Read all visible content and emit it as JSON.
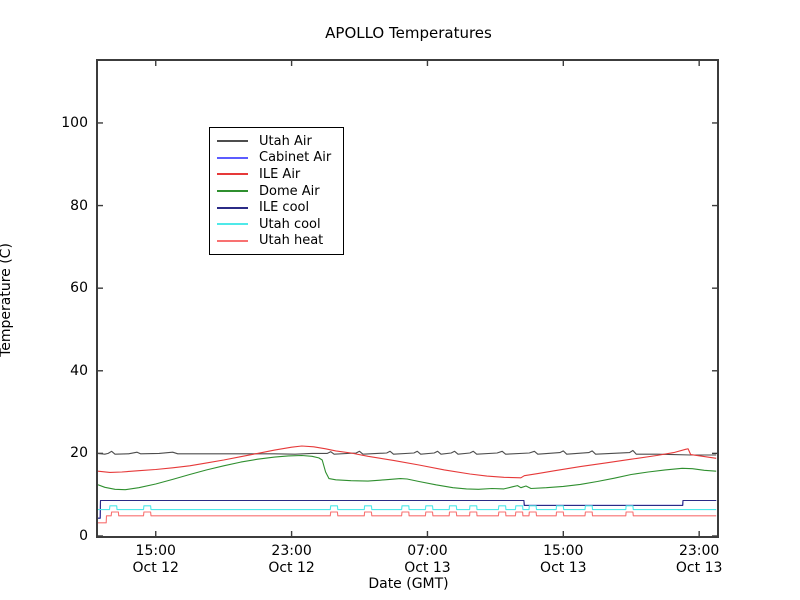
{
  "figure": {
    "title": "APOLLO Temperatures"
  },
  "chart_data": {
    "type": "line",
    "title": "APOLLO Temperatures",
    "xlabel": "Date (GMT)",
    "ylabel": "Temperature (C)",
    "x_units": "hours since Oct 12 00:00 GMT",
    "xlim": [
      11.6,
      48.05
    ],
    "ylim": [
      0,
      115
    ],
    "grid": false,
    "legend_position": "upper-left",
    "yticks": [
      0,
      20,
      40,
      60,
      80,
      100
    ],
    "xticks": [
      {
        "hour": 15,
        "time": "15:00",
        "date": "Oct 12"
      },
      {
        "hour": 23,
        "time": "23:00",
        "date": "Oct 12"
      },
      {
        "hour": 31,
        "time": "07:00",
        "date": "Oct 13"
      },
      {
        "hour": 39,
        "time": "15:00",
        "date": "Oct 13"
      },
      {
        "hour": 47,
        "time": "23:00",
        "date": "Oct 13"
      }
    ],
    "series": [
      {
        "name": "Utah Air",
        "color": "#4d4d4d",
        "points": [
          [
            11.6,
            20.0
          ],
          [
            12.0,
            19.8
          ],
          [
            12.2,
            20.0
          ],
          [
            12.4,
            20.5
          ],
          [
            12.6,
            19.8
          ],
          [
            13.4,
            19.9
          ],
          [
            13.9,
            20.3
          ],
          [
            14.1,
            19.9
          ],
          [
            15.2,
            20.0
          ],
          [
            16.0,
            20.3
          ],
          [
            16.3,
            19.9
          ],
          [
            17.5,
            19.9
          ],
          [
            19.0,
            19.9
          ],
          [
            20.5,
            19.9
          ],
          [
            22.0,
            19.9
          ],
          [
            23.2,
            19.8
          ],
          [
            24.2,
            20.0
          ],
          [
            25.1,
            20.0
          ],
          [
            25.3,
            20.4
          ],
          [
            25.5,
            19.8
          ],
          [
            26.8,
            20.1
          ],
          [
            27.0,
            20.5
          ],
          [
            27.2,
            19.8
          ],
          [
            28.6,
            20.1
          ],
          [
            28.8,
            20.5
          ],
          [
            29.0,
            19.8
          ],
          [
            30.2,
            20.1
          ],
          [
            30.4,
            20.5
          ],
          [
            30.6,
            19.8
          ],
          [
            31.4,
            20.1
          ],
          [
            31.6,
            20.5
          ],
          [
            31.8,
            19.8
          ],
          [
            32.4,
            20.1
          ],
          [
            32.6,
            20.5
          ],
          [
            32.8,
            19.8
          ],
          [
            33.5,
            20.1
          ],
          [
            33.7,
            20.5
          ],
          [
            33.9,
            19.8
          ],
          [
            35.1,
            20.1
          ],
          [
            35.4,
            20.5
          ],
          [
            35.6,
            19.8
          ],
          [
            37.0,
            20.1
          ],
          [
            37.3,
            20.5
          ],
          [
            37.5,
            19.8
          ],
          [
            38.8,
            20.2
          ],
          [
            39.0,
            20.6
          ],
          [
            39.2,
            19.8
          ],
          [
            40.5,
            20.2
          ],
          [
            40.7,
            20.6
          ],
          [
            40.9,
            19.8
          ],
          [
            42.9,
            20.2
          ],
          [
            43.1,
            20.7
          ],
          [
            43.3,
            19.8
          ],
          [
            44.5,
            19.8
          ],
          [
            45.5,
            19.7
          ],
          [
            46.5,
            19.6
          ],
          [
            48.0,
            19.6
          ]
        ]
      },
      {
        "name": "Cabinet Air",
        "color": "#5c5cff",
        "points": [
          [
            11.6,
            4.3
          ],
          [
            11.73,
            4.3
          ],
          [
            11.75,
            8.6
          ],
          [
            36.68,
            8.6
          ],
          [
            36.7,
            7.4
          ],
          [
            46.03,
            7.4
          ],
          [
            46.05,
            8.6
          ],
          [
            48.0,
            8.6
          ]
        ]
      },
      {
        "name": "ILE Air",
        "color": "#e63939",
        "points": [
          [
            11.6,
            15.7
          ],
          [
            12.3,
            15.4
          ],
          [
            13.0,
            15.5
          ],
          [
            14.0,
            15.8
          ],
          [
            15.0,
            16.1
          ],
          [
            16.0,
            16.5
          ],
          [
            17.0,
            17.0
          ],
          [
            18.0,
            17.7
          ],
          [
            19.0,
            18.4
          ],
          [
            20.0,
            19.2
          ],
          [
            21.0,
            20.0
          ],
          [
            22.0,
            20.8
          ],
          [
            23.0,
            21.5
          ],
          [
            23.6,
            21.8
          ],
          [
            24.3,
            21.6
          ],
          [
            25.0,
            21.1
          ],
          [
            25.6,
            20.6
          ],
          [
            26.5,
            20.1
          ],
          [
            27.5,
            19.3
          ],
          [
            29.0,
            18.3
          ],
          [
            30.5,
            17.2
          ],
          [
            32.0,
            16.0
          ],
          [
            33.5,
            15.0
          ],
          [
            34.5,
            14.5
          ],
          [
            35.5,
            14.2
          ],
          [
            36.5,
            14.1
          ],
          [
            36.7,
            14.6
          ],
          [
            37.5,
            15.1
          ],
          [
            38.5,
            15.8
          ],
          [
            40.0,
            16.8
          ],
          [
            41.5,
            17.7
          ],
          [
            43.0,
            18.6
          ],
          [
            44.5,
            19.5
          ],
          [
            45.5,
            20.2
          ],
          [
            46.2,
            21.0
          ],
          [
            46.35,
            21.1
          ],
          [
            46.5,
            19.7
          ],
          [
            47.2,
            19.3
          ],
          [
            48.0,
            18.8
          ]
        ]
      },
      {
        "name": "Dome Air",
        "color": "#2f8f2f",
        "points": [
          [
            11.6,
            12.4
          ],
          [
            12.0,
            11.8
          ],
          [
            12.6,
            11.3
          ],
          [
            13.2,
            11.2
          ],
          [
            14.0,
            11.7
          ],
          [
            15.0,
            12.6
          ],
          [
            16.0,
            13.7
          ],
          [
            17.0,
            14.9
          ],
          [
            18.0,
            16.0
          ],
          [
            19.0,
            17.0
          ],
          [
            20.0,
            17.9
          ],
          [
            21.0,
            18.6
          ],
          [
            22.0,
            19.1
          ],
          [
            22.8,
            19.4
          ],
          [
            23.6,
            19.5
          ],
          [
            24.2,
            19.3
          ],
          [
            24.6,
            18.9
          ],
          [
            24.8,
            18.4
          ],
          [
            25.0,
            15.5
          ],
          [
            25.2,
            13.9
          ],
          [
            25.6,
            13.6
          ],
          [
            26.5,
            13.4
          ],
          [
            27.5,
            13.3
          ],
          [
            28.5,
            13.6
          ],
          [
            29.4,
            13.9
          ],
          [
            29.8,
            13.8
          ],
          [
            30.5,
            13.2
          ],
          [
            31.5,
            12.4
          ],
          [
            32.5,
            11.7
          ],
          [
            33.3,
            11.4
          ],
          [
            34.0,
            11.3
          ],
          [
            34.8,
            11.5
          ],
          [
            35.5,
            11.4
          ],
          [
            36.0,
            11.9
          ],
          [
            36.3,
            12.2
          ],
          [
            36.5,
            11.7
          ],
          [
            36.8,
            12.1
          ],
          [
            37.1,
            11.5
          ],
          [
            38.0,
            11.7
          ],
          [
            39.0,
            12.0
          ],
          [
            40.0,
            12.5
          ],
          [
            41.0,
            13.2
          ],
          [
            42.0,
            14.0
          ],
          [
            43.0,
            14.9
          ],
          [
            44.0,
            15.5
          ],
          [
            45.0,
            16.0
          ],
          [
            46.0,
            16.4
          ],
          [
            46.6,
            16.3
          ],
          [
            47.3,
            15.9
          ],
          [
            48.0,
            15.7
          ]
        ]
      },
      {
        "name": "ILE cool",
        "color": "#2b2b86",
        "points": [
          [
            11.6,
            4.3
          ],
          [
            11.73,
            4.3
          ],
          [
            11.75,
            8.6
          ],
          [
            36.68,
            8.6
          ],
          [
            36.7,
            7.4
          ],
          [
            46.03,
            7.4
          ],
          [
            46.05,
            8.6
          ],
          [
            48.0,
            8.6
          ]
        ]
      },
      {
        "name": "Utah cool",
        "color": "#4fe9e9",
        "points": [
          [
            11.6,
            6.4
          ],
          [
            12.28,
            6.4
          ],
          [
            12.3,
            7.3
          ],
          [
            12.7,
            7.3
          ],
          [
            12.72,
            6.4
          ],
          [
            14.28,
            6.4
          ],
          [
            14.3,
            7.3
          ],
          [
            14.7,
            7.3
          ],
          [
            14.72,
            6.4
          ],
          [
            25.28,
            6.4
          ],
          [
            25.3,
            7.3
          ],
          [
            25.7,
            7.3
          ],
          [
            25.72,
            6.4
          ],
          [
            27.28,
            6.4
          ],
          [
            27.3,
            7.3
          ],
          [
            27.7,
            7.3
          ],
          [
            27.72,
            6.4
          ],
          [
            29.48,
            6.4
          ],
          [
            29.5,
            7.3
          ],
          [
            29.9,
            7.3
          ],
          [
            29.92,
            6.4
          ],
          [
            30.88,
            6.4
          ],
          [
            30.9,
            7.3
          ],
          [
            31.3,
            7.3
          ],
          [
            31.32,
            6.4
          ],
          [
            32.28,
            6.4
          ],
          [
            32.3,
            7.3
          ],
          [
            32.7,
            7.3
          ],
          [
            32.72,
            6.4
          ],
          [
            33.48,
            6.4
          ],
          [
            33.5,
            7.3
          ],
          [
            33.9,
            7.3
          ],
          [
            33.92,
            6.4
          ],
          [
            35.18,
            6.4
          ],
          [
            35.2,
            7.3
          ],
          [
            35.6,
            7.3
          ],
          [
            35.62,
            6.4
          ],
          [
            36.18,
            6.4
          ],
          [
            36.2,
            7.3
          ],
          [
            36.6,
            7.3
          ],
          [
            36.62,
            6.4
          ],
          [
            36.98,
            6.4
          ],
          [
            37.0,
            7.3
          ],
          [
            37.4,
            7.3
          ],
          [
            37.42,
            6.4
          ],
          [
            38.58,
            6.4
          ],
          [
            38.6,
            7.3
          ],
          [
            39.0,
            7.3
          ],
          [
            39.02,
            6.4
          ],
          [
            40.28,
            6.4
          ],
          [
            40.3,
            7.3
          ],
          [
            40.7,
            7.3
          ],
          [
            40.72,
            6.4
          ],
          [
            42.68,
            6.4
          ],
          [
            42.7,
            7.3
          ],
          [
            43.1,
            7.3
          ],
          [
            43.12,
            6.4
          ],
          [
            48.0,
            6.4
          ]
        ]
      },
      {
        "name": "Utah heat",
        "color": "#f87171",
        "points": [
          [
            11.6,
            3.2
          ],
          [
            12.08,
            3.2
          ],
          [
            12.1,
            4.9
          ],
          [
            12.38,
            4.9
          ],
          [
            12.4,
            5.8
          ],
          [
            12.8,
            5.8
          ],
          [
            12.82,
            4.9
          ],
          [
            14.28,
            4.9
          ],
          [
            14.3,
            5.8
          ],
          [
            14.7,
            5.8
          ],
          [
            14.72,
            4.9
          ],
          [
            25.28,
            4.9
          ],
          [
            25.3,
            5.8
          ],
          [
            25.7,
            5.8
          ],
          [
            25.72,
            4.9
          ],
          [
            27.28,
            4.9
          ],
          [
            27.3,
            5.8
          ],
          [
            27.7,
            5.8
          ],
          [
            27.72,
            4.9
          ],
          [
            29.48,
            4.9
          ],
          [
            29.5,
            5.8
          ],
          [
            29.9,
            5.8
          ],
          [
            29.92,
            4.9
          ],
          [
            30.88,
            4.9
          ],
          [
            30.9,
            5.8
          ],
          [
            31.3,
            5.8
          ],
          [
            31.32,
            4.9
          ],
          [
            32.28,
            4.9
          ],
          [
            32.3,
            5.8
          ],
          [
            32.7,
            5.8
          ],
          [
            32.72,
            4.9
          ],
          [
            33.48,
            4.9
          ],
          [
            33.5,
            5.8
          ],
          [
            33.9,
            5.8
          ],
          [
            33.92,
            4.9
          ],
          [
            35.18,
            4.9
          ],
          [
            35.2,
            5.8
          ],
          [
            35.6,
            5.8
          ],
          [
            35.62,
            4.9
          ],
          [
            36.18,
            4.9
          ],
          [
            36.2,
            5.8
          ],
          [
            36.6,
            5.8
          ],
          [
            36.62,
            4.9
          ],
          [
            36.98,
            4.9
          ],
          [
            37.0,
            5.8
          ],
          [
            37.4,
            5.8
          ],
          [
            37.42,
            4.9
          ],
          [
            38.58,
            4.9
          ],
          [
            38.6,
            5.8
          ],
          [
            39.0,
            5.8
          ],
          [
            39.02,
            4.9
          ],
          [
            40.28,
            4.9
          ],
          [
            40.3,
            5.8
          ],
          [
            40.7,
            5.8
          ],
          [
            40.72,
            4.9
          ],
          [
            42.68,
            4.9
          ],
          [
            42.7,
            5.8
          ],
          [
            43.1,
            5.8
          ],
          [
            43.12,
            4.9
          ],
          [
            48.0,
            4.9
          ]
        ]
      }
    ]
  }
}
